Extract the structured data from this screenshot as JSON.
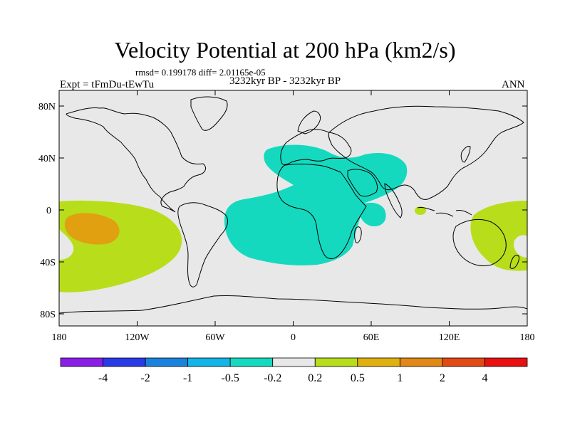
{
  "title": "Velocity Potential at 200 hPa (km2/s)",
  "stats": "rmsd= 0.199178 diff= 2.01165e-05",
  "experiment": "Expt = tFmDu-tEwTu",
  "period": "3232kyr BP - 3232kyr BP",
  "season": "ANN",
  "lat_labels": [
    "80N",
    "40N",
    "0",
    "40S",
    "80S"
  ],
  "lon_labels": [
    "180",
    "120W",
    "60W",
    "0",
    "60E",
    "120E",
    "180"
  ],
  "colorbar": {
    "labels": [
      "-4",
      "-2",
      "-1",
      "-0.5",
      "-0.2",
      "0.2",
      "0.5",
      "1",
      "2",
      "4"
    ],
    "colors": [
      "#8a1ee6",
      "#2a3ae6",
      "#1a82dd",
      "#13b4e6",
      "#14d9bf",
      "#e8e8e8",
      "#b8dd1a",
      "#e0b010",
      "#e08818",
      "#e04a14",
      "#e81010"
    ]
  },
  "map_colors": {
    "ocean": "#e8e8e8",
    "positive_0_2": "#b8dd1a",
    "positive_1": "#e0a010",
    "negative": "#14d9bf"
  }
}
